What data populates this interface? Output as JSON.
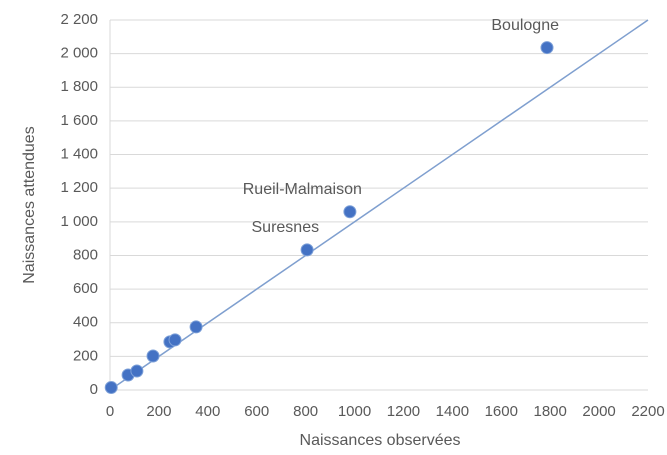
{
  "chart_data": {
    "type": "scatter",
    "xlabel": "Naissances observées",
    "ylabel": "Naissances attendues",
    "x": [
      5,
      74,
      110,
      176,
      245,
      266,
      352,
      806,
      981,
      1787
    ],
    "values": [
      15,
      89,
      113,
      202,
      286,
      298,
      375,
      833,
      1060,
      2036
    ],
    "point_labels": [
      null,
      null,
      null,
      null,
      null,
      null,
      null,
      "Suresnes",
      "Rueil-Malmaison",
      "Boulogne"
    ],
    "color": "#4472c4",
    "diagonal": {
      "x": [
        0,
        2200
      ],
      "values": [
        0,
        2200
      ],
      "color": "#7f9fcf"
    },
    "xlim": [
      0,
      2200
    ],
    "xticks": [
      0,
      200,
      400,
      600,
      800,
      1000,
      1200,
      1400,
      1600,
      1800,
      2000,
      2200
    ],
    "ylim": [
      0,
      2200
    ],
    "yticks": [
      0,
      200,
      400,
      600,
      800,
      {
        "value": 1000,
        "label": "1 000"
      },
      {
        "value": 1200,
        "label": "1 200"
      },
      {
        "value": 1400,
        "label": "1 400"
      },
      {
        "value": 1600,
        "label": "1 600"
      },
      {
        "value": 1800,
        "label": "1 800"
      },
      {
        "value": 2000,
        "label": "2 000"
      },
      {
        "value": 2200,
        "label": "2 200"
      }
    ],
    "grid": true
  }
}
